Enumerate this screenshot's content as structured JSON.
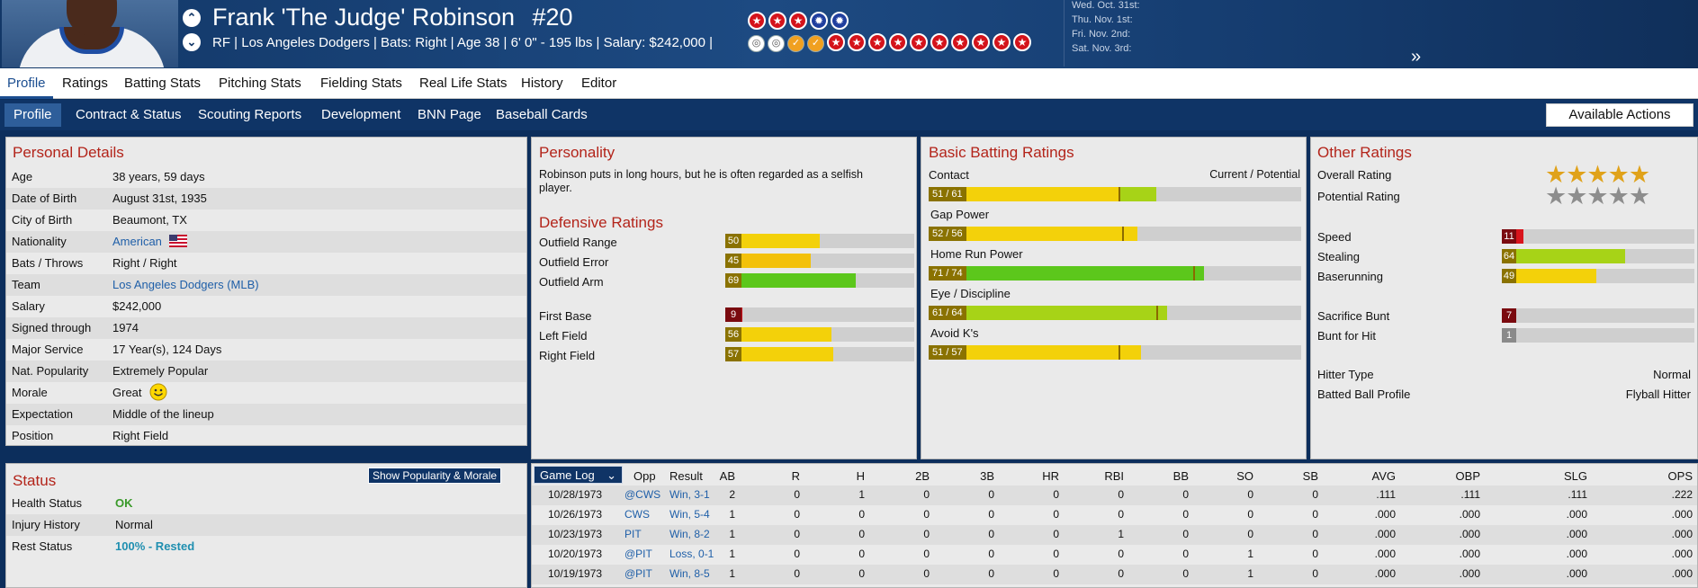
{
  "header": {
    "name": "Frank 'The Judge' Robinson",
    "number": "#20",
    "subline": "RF | Los Angeles Dodgers  |  Bats: Right  |  Age 38  |  6' 0\" - 195 lbs  |  Salary: $242,000  |",
    "dates": [
      "Wed. Oct. 31st:",
      "Thu. Nov. 1st:",
      "Fri. Nov. 2nd:",
      "Sat. Nov. 3rd:"
    ],
    "expand_glyph": "»"
  },
  "nav": {
    "tabs": [
      "Profile",
      "Ratings",
      "Batting Stats",
      "Pitching Stats",
      "Fielding Stats",
      "Real Life Stats",
      "History",
      "Editor"
    ],
    "subtabs": [
      "Profile",
      "Contract & Status",
      "Scouting Reports",
      "Development",
      "BNN Page",
      "Baseball Cards"
    ],
    "actions": "Available Actions"
  },
  "personal": {
    "title": "Personal Details",
    "rows": [
      {
        "k": "Age",
        "v": "38 years, 59 days"
      },
      {
        "k": "Date of Birth",
        "v": "August 31st, 1935"
      },
      {
        "k": "City of Birth",
        "v": "Beaumont, TX"
      },
      {
        "k": "Nationality",
        "v": "American"
      },
      {
        "k": "Bats / Throws",
        "v": "Right / Right"
      },
      {
        "k": "Team",
        "v": "Los Angeles Dodgers (MLB)"
      },
      {
        "k": "Salary",
        "v": "$242,000"
      },
      {
        "k": "Signed through",
        "v": "1974"
      },
      {
        "k": "Major Service",
        "v": "17 Year(s), 124 Days"
      },
      {
        "k": "Nat. Popularity",
        "v": "Extremely Popular"
      },
      {
        "k": "Morale",
        "v": "Great"
      },
      {
        "k": "Expectation",
        "v": "Middle of the lineup"
      },
      {
        "k": "Position",
        "v": "Right Field"
      }
    ]
  },
  "status": {
    "title": "Status",
    "button": "Show Popularity & Morale",
    "rows": [
      {
        "k": "Health Status",
        "v": "OK",
        "color": "#3a9a2a"
      },
      {
        "k": "Injury History",
        "v": "Normal",
        "color": "#111111"
      },
      {
        "k": "Rest Status",
        "v": "100% - Rested",
        "color": "#1f8fb0"
      }
    ]
  },
  "personality": {
    "title": "Personality",
    "text": "Robinson puts in long hours, but he is often regarded as a selfish player."
  },
  "defense": {
    "title": "Defensive Ratings",
    "rows": [
      {
        "label": "Outfield Range",
        "value": 50,
        "color": "#f3d10a"
      },
      {
        "label": "Outfield Error",
        "value": 45,
        "color": "#f3c10a"
      },
      {
        "label": "Outfield Arm",
        "value": 69,
        "color": "#5cc71c"
      },
      {
        "label": "First Base",
        "value": 9,
        "color": "#c8101a"
      },
      {
        "label": "Left Field",
        "value": 56,
        "color": "#f3d10a"
      },
      {
        "label": "Right Field",
        "value": 57,
        "color": "#f3d10a"
      }
    ]
  },
  "batting": {
    "title": "Basic Batting Ratings",
    "legend": "Current / Potential",
    "rows": [
      {
        "label": "Contact",
        "text": "51 / 61",
        "current": 51,
        "potential": 61,
        "color": "#f3d10a",
        "pcolor": "#a7d317"
      },
      {
        "label": "Gap Power",
        "text": "52 / 56",
        "current": 52,
        "potential": 56,
        "color": "#f3d10a",
        "pcolor": "#f3d10a"
      },
      {
        "label": "Home Run Power",
        "text": "71 / 74",
        "current": 71,
        "potential": 74,
        "color": "#5cc71c",
        "pcolor": "#5cc71c"
      },
      {
        "label": "Eye / Discipline",
        "text": "61 / 64",
        "current": 61,
        "potential": 64,
        "color": "#a7d317",
        "pcolor": "#a7d317"
      },
      {
        "label": "Avoid K's",
        "text": "51 / 57",
        "current": 51,
        "potential": 57,
        "color": "#f3d10a",
        "pcolor": "#f3d10a"
      }
    ]
  },
  "other": {
    "title": "Other Ratings",
    "overall_label": "Overall Rating",
    "potential_label": "Potential Rating",
    "overall_stars": 4.5,
    "potential_stars": 4.5,
    "overall_glyph": "★★★★★",
    "potential_glyph": "★★★★★",
    "rows": [
      {
        "label": "Speed",
        "value": 11,
        "color": "#d8141c"
      },
      {
        "label": "Stealing",
        "value": 64,
        "color": "#a7d317"
      },
      {
        "label": "Baserunning",
        "value": 49,
        "color": "#f3d10a"
      },
      {
        "label": "Sacrifice Bunt",
        "value": 7,
        "color": "#b0101a"
      },
      {
        "label": "Bunt for Hit",
        "value": 1,
        "color": "#bdbdbd"
      }
    ],
    "hitter_type_label": "Hitter Type",
    "hitter_type": "Normal",
    "bbp_label": "Batted Ball Profile",
    "bbp": "Flyball Hitter"
  },
  "gamelog": {
    "selector": "Game Log",
    "columns": [
      "Opp",
      "Result",
      "AB",
      "R",
      "H",
      "2B",
      "3B",
      "HR",
      "RBI",
      "BB",
      "SO",
      "SB",
      "AVG",
      "OBP",
      "SLG",
      "OPS"
    ],
    "rows": [
      {
        "date": "10/28/1973",
        "opp": "@CWS",
        "result": "Win, 3-1",
        "stats": [
          "2",
          "0",
          "1",
          "0",
          "0",
          "0",
          "0",
          "0",
          "0",
          "0",
          ".111",
          ".111",
          ".111",
          ".222"
        ]
      },
      {
        "date": "10/26/1973",
        "opp": "CWS",
        "result": "Win, 5-4",
        "stats": [
          "1",
          "0",
          "0",
          "0",
          "0",
          "0",
          "0",
          "0",
          "0",
          "0",
          ".000",
          ".000",
          ".000",
          ".000"
        ]
      },
      {
        "date": "10/23/1973",
        "opp": "PIT",
        "result": "Win, 8-2",
        "stats": [
          "1",
          "0",
          "0",
          "0",
          "0",
          "0",
          "1",
          "0",
          "0",
          "0",
          ".000",
          ".000",
          ".000",
          ".000"
        ]
      },
      {
        "date": "10/20/1973",
        "opp": "@PIT",
        "result": "Loss, 0-1",
        "stats": [
          "1",
          "0",
          "0",
          "0",
          "0",
          "0",
          "0",
          "0",
          "1",
          "0",
          ".000",
          ".000",
          ".000",
          ".000"
        ]
      },
      {
        "date": "10/19/1973",
        "opp": "@PIT",
        "result": "Win, 8-5",
        "stats": [
          "1",
          "0",
          "0",
          "0",
          "0",
          "0",
          "0",
          "0",
          "1",
          "0",
          ".000",
          ".000",
          ".000",
          ".000"
        ]
      }
    ]
  }
}
